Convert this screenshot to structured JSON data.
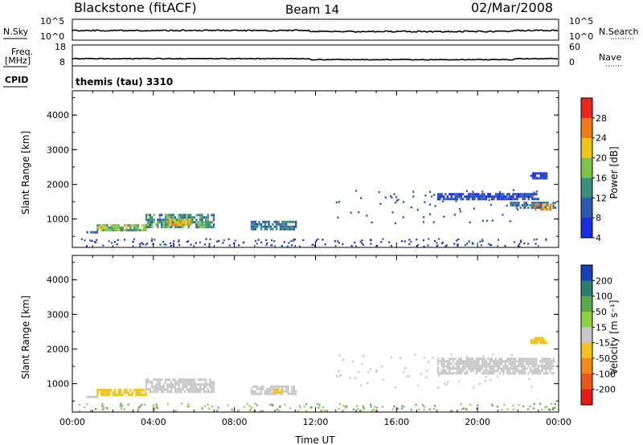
{
  "header": {
    "station": "Blackstone (fitACF)",
    "beam": "Beam 14",
    "date": "02/Mar/2008"
  },
  "top_panels": {
    "nsky_label": "N.Sky",
    "nsky_ticks": [
      "10^5",
      "10^0"
    ],
    "nsearch_label": "N.Search",
    "nsearch_ticks": [
      "10^5",
      "10^0"
    ],
    "freq_label_1": "Freq.",
    "freq_label_2": "[MHz]",
    "freq_ticks": [
      "18",
      "8"
    ],
    "nave_label": "Nave",
    "nave_ticks": [
      "60",
      "0"
    ],
    "cpid_label": "CPID",
    "cpid_value": "themis (tau) 3310"
  },
  "colorbars": {
    "power": {
      "label": "Power [dB]",
      "ticks": [
        "28",
        "24",
        "20",
        "16",
        "12",
        "8",
        "4"
      ],
      "colors": [
        "#e8261b",
        "#f07a1a",
        "#f0c31a",
        "#7dc24a",
        "#3c8f7a",
        "#2f56b0",
        "#1a2fe0"
      ]
    },
    "velocity": {
      "label": "Velocity [m s⁻¹]",
      "ticks": [
        "200",
        "100",
        "50",
        "15",
        "-15",
        "-50",
        "-100",
        "-200"
      ],
      "colors": [
        "#1b3fb5",
        "#2d7a6e",
        "#5aa84a",
        "#8fd040",
        "#c8c8c8",
        "#f0c31a",
        "#f08a1a",
        "#e8561b",
        "#e81b1b"
      ]
    }
  },
  "chart_data": [
    {
      "type": "heatmap",
      "title": "",
      "xlabel": "",
      "ylabel": "Slant Range [km]",
      "x_ticks": [
        "00:00",
        "04:00",
        "08:00",
        "12:00",
        "16:00",
        "20:00",
        "00:00"
      ],
      "xlim_hours": [
        0,
        24
      ],
      "ylim_km": [
        180,
        4700
      ],
      "y_ticks": [
        1000,
        2000,
        3000,
        4000
      ],
      "quantity": "Power [dB]",
      "blobs": [
        {
          "t0": 0.6,
          "t1": 1.2,
          "r0": 600,
          "r1": 650,
          "value": 10
        },
        {
          "t0": 1.2,
          "t1": 3.6,
          "r0": 700,
          "r1": 850,
          "value": 18
        },
        {
          "t0": 3.6,
          "t1": 7.0,
          "r0": 780,
          "r1": 1150,
          "value": 14
        },
        {
          "t0": 4.7,
          "t1": 5.8,
          "r0": 850,
          "r1": 1000,
          "value": 22
        },
        {
          "t0": 8.8,
          "t1": 11.0,
          "r0": 700,
          "r1": 950,
          "value": 12
        },
        {
          "t0": 21.6,
          "t1": 23.8,
          "r0": 1300,
          "r1": 1500,
          "value": 12
        },
        {
          "t0": 22.8,
          "t1": 23.6,
          "r0": 1300,
          "r1": 1450,
          "value": 24
        },
        {
          "t0": 18.0,
          "t1": 23.0,
          "r0": 1550,
          "r1": 1750,
          "value": 8
        },
        {
          "t0": 22.6,
          "t1": 23.4,
          "r0": 2200,
          "r1": 2350,
          "value": 8
        }
      ]
    },
    {
      "type": "heatmap",
      "title": "",
      "xlabel": "Time UT",
      "ylabel": "Slant Range [km]",
      "x_ticks": [
        "00:00",
        "04:00",
        "08:00",
        "12:00",
        "16:00",
        "20:00",
        "00:00"
      ],
      "xlim_hours": [
        0,
        24
      ],
      "ylim_km": [
        180,
        4700
      ],
      "y_ticks": [
        1000,
        2000,
        3000,
        4000
      ],
      "quantity": "Velocity [m s-1]",
      "blobs": [
        {
          "t0": 0.6,
          "t1": 1.2,
          "r0": 600,
          "r1": 650,
          "value": 0
        },
        {
          "t0": 1.2,
          "t1": 3.6,
          "r0": 700,
          "r1": 850,
          "value": -30
        },
        {
          "t0": 3.6,
          "t1": 7.0,
          "r0": 780,
          "r1": 1150,
          "value": 0
        },
        {
          "t0": 8.8,
          "t1": 11.0,
          "r0": 700,
          "r1": 950,
          "value": 0
        },
        {
          "t0": 9.8,
          "t1": 10.3,
          "r0": 720,
          "r1": 850,
          "value": -40
        },
        {
          "t0": 18.0,
          "t1": 23.8,
          "r0": 1300,
          "r1": 1750,
          "value": 0
        },
        {
          "t0": 22.6,
          "t1": 23.4,
          "r0": 2200,
          "r1": 2350,
          "value": -40
        }
      ]
    }
  ]
}
